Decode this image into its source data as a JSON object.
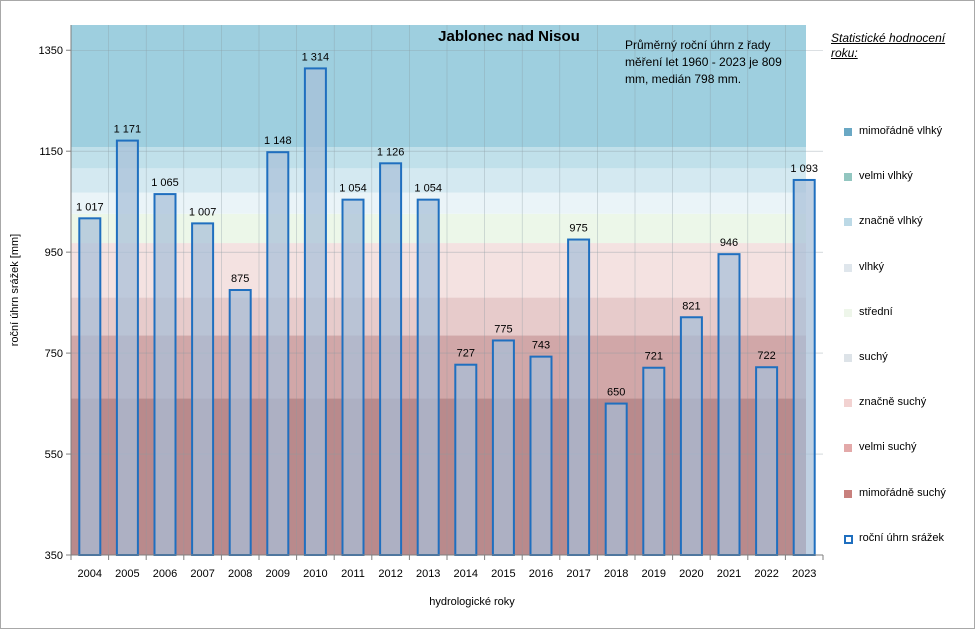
{
  "chart_data": {
    "type": "bar",
    "title": "Jablonec nad Nisou",
    "note": "Průměrný roční úhrn z řady měření let 1960 - 2023 je 809 mm, medián 798 mm.",
    "xlabel": "hydrologické roky",
    "ylabel": "roční úhrn srážek [mm]",
    "ylim": [
      350,
      1400
    ],
    "yticks": [
      350,
      550,
      750,
      950,
      1150,
      1350
    ],
    "grid": true,
    "legend_position": "right",
    "legend_title": "Statistické hodnocení roku:",
    "categories": [
      "2004",
      "2005",
      "2006",
      "2007",
      "2008",
      "2009",
      "2010",
      "2011",
      "2012",
      "2013",
      "2014",
      "2015",
      "2016",
      "2017",
      "2018",
      "2019",
      "2020",
      "2021",
      "2022",
      "2023"
    ],
    "series": [
      {
        "name": "roční úhrn srážek",
        "values": [
          1017,
          1171,
          1065,
          1007,
          875,
          1148,
          1314,
          1054,
          1126,
          1054,
          727,
          775,
          743,
          975,
          650,
          721,
          821,
          946,
          722,
          1093
        ],
        "labels": [
          "1 017",
          "1 171",
          "1 065",
          "1 007",
          "875",
          "1 148",
          "1 314",
          "1 054",
          "1 126",
          "1 054",
          "727",
          "775",
          "743",
          "975",
          "650",
          "721",
          "821",
          "946",
          "722",
          "1 093"
        ],
        "fill": "#a7bfd8",
        "stroke": "#1f6fbf"
      }
    ],
    "bands": [
      {
        "name": "mimořádně suchý",
        "from": 350,
        "to": 660,
        "color": "#b98a8c"
      },
      {
        "name": "velmi suchý",
        "from": 660,
        "to": 785,
        "color": "#d1a7a8"
      },
      {
        "name": "značně suchý",
        "from": 785,
        "to": 860,
        "color": "#e7cbcb"
      },
      {
        "name": "suchý",
        "from": 860,
        "to": 968,
        "color": "#f4e2e1"
      },
      {
        "name": "střední",
        "from": 968,
        "to": 1026,
        "color": "#ecf7e9"
      },
      {
        "name": "vlhký",
        "from": 1026,
        "to": 1068,
        "color": "#eaf4f8"
      },
      {
        "name": "značně vlhký",
        "from": 1068,
        "to": 1116,
        "color": "#d4e9f1"
      },
      {
        "name": "velmi vlhký",
        "from": 1116,
        "to": 1158,
        "color": "#c0e0ea"
      },
      {
        "name": "mimořádně vlhký",
        "from": 1158,
        "to": 1400,
        "color": "#9ecfdf"
      }
    ],
    "legend_entries": [
      {
        "label": "mimořádně vlhký",
        "color": "#6aa8c4"
      },
      {
        "label": "velmi vlhký",
        "color": "#92c6c0"
      },
      {
        "label": "značně vlhký",
        "color": "#bcd9e6"
      },
      {
        "label": "vlhký",
        "color": "#dfe6ec"
      },
      {
        "label": "střední",
        "color": "#eef6ea"
      },
      {
        "label": "suchý",
        "color": "#dde3e8"
      },
      {
        "label": "značně suchý",
        "color": "#f2d2d1"
      },
      {
        "label": "velmi suchý",
        "color": "#e3a9a9"
      },
      {
        "label": "mimořádně suchý",
        "color": "#c8807d"
      },
      {
        "label": "roční úhrn srážek",
        "color": "#ffffff",
        "border": "#1f6fbf"
      }
    ]
  }
}
